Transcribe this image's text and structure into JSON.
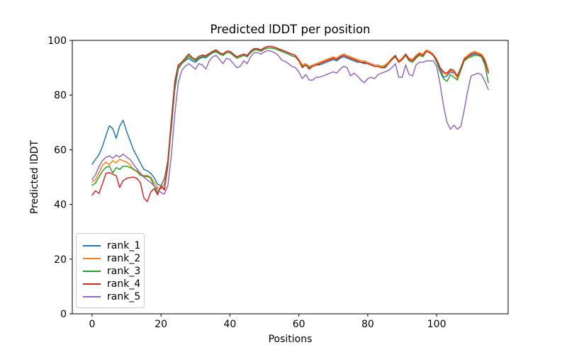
{
  "chart_data": {
    "type": "line",
    "title": "Predicted lDDT per position",
    "xlabel": "Positions",
    "ylabel": "Predicted lDDT",
    "xlim": [
      -5.75,
      120.75
    ],
    "ylim": [
      0,
      100
    ],
    "xticks": [
      0,
      20,
      40,
      60,
      80,
      100
    ],
    "yticks": [
      0,
      20,
      40,
      60,
      80,
      100
    ],
    "grid": false,
    "legend_position": "lower-left",
    "x_start": 0,
    "x_step": 1,
    "series": [
      {
        "name": "rank_1",
        "color": "#1f77b4",
        "values": [
          54.7,
          56.5,
          58.2,
          61.2,
          65.1,
          68.8,
          67.7,
          64.2,
          68.6,
          70.8,
          66.8,
          63.4,
          60,
          57.6,
          55.2,
          52.8,
          52.3,
          51.4,
          49.8,
          47.4,
          46.8,
          49.5,
          56,
          68,
          82,
          89.5,
          91.5,
          92.5,
          93.5,
          92.5,
          92,
          93.2,
          93.8,
          93.6,
          94.6,
          95.5,
          95.8,
          95,
          94.5,
          95.5,
          95.5,
          94.5,
          93.5,
          94,
          94.5,
          94,
          95.5,
          96.5,
          96.5,
          96,
          96.8,
          97.2,
          97.2,
          97,
          96.5,
          96,
          95.5,
          95,
          94.3,
          94,
          92.5,
          90.5,
          91,
          90,
          90.5,
          91,
          91,
          91.5,
          92,
          92.5,
          93,
          92.5,
          93.5,
          94,
          93.5,
          93,
          92.5,
          92,
          92,
          91.5,
          91.5,
          91,
          90.5,
          90.5,
          90,
          90.5,
          91.5,
          93,
          94,
          92,
          93,
          94.5,
          93,
          92.5,
          94,
          95,
          94.5,
          96,
          95.5,
          94.5,
          92.5,
          89.5,
          86.5,
          87,
          88.5,
          88,
          87,
          89.5,
          93,
          94,
          94.5,
          95,
          95,
          94,
          92,
          88.5
        ]
      },
      {
        "name": "rank_2",
        "color": "#ff7f0e",
        "values": [
          48.3,
          49.1,
          51.7,
          54.3,
          55.5,
          54.5,
          56,
          55.2,
          56.5,
          56,
          55.5,
          54.5,
          52.6,
          52.3,
          51,
          50.6,
          50.6,
          50,
          48,
          46.2,
          45.7,
          47.5,
          56,
          70,
          84,
          90.5,
          92,
          93.5,
          95,
          93.8,
          93,
          94.2,
          94.6,
          94.4,
          95.2,
          96,
          96.5,
          95.5,
          95,
          96,
          96,
          95,
          94,
          94.5,
          95,
          94.5,
          96,
          97,
          97,
          96.5,
          97.3,
          97.8,
          97.8,
          97.5,
          97,
          96.5,
          96,
          95.5,
          95,
          94.5,
          93,
          91,
          91.5,
          90.5,
          91,
          91.5,
          92,
          92.5,
          93,
          93.5,
          94,
          93.5,
          94.5,
          95,
          94.5,
          94,
          93.5,
          93,
          92.5,
          92.5,
          92,
          91.5,
          91,
          91,
          90.5,
          91,
          92,
          93.5,
          94.5,
          92.5,
          93.5,
          95,
          93.5,
          93,
          94.5,
          95.5,
          95,
          96.5,
          96,
          95,
          93,
          90,
          88,
          87.5,
          89,
          88.5,
          86,
          90,
          93.5,
          94.5,
          95.5,
          96,
          95.5,
          95,
          93,
          89
        ]
      },
      {
        "name": "rank_3",
        "color": "#2ca02c",
        "values": [
          47,
          47.8,
          50,
          52.2,
          53.5,
          54,
          51.5,
          53.5,
          52.8,
          54,
          54,
          53.5,
          53,
          52,
          50.7,
          50.2,
          50.2,
          49.6,
          46.8,
          44.3,
          46.4,
          45.6,
          54,
          69,
          83,
          90,
          91.5,
          92.8,
          94.3,
          93.2,
          92.5,
          93.6,
          94.2,
          94,
          94.8,
          95.6,
          96,
          95,
          94.5,
          95.5,
          95.5,
          94.5,
          93.5,
          94,
          94.5,
          94,
          95.5,
          96.5,
          96.5,
          96,
          96.8,
          97.2,
          97.2,
          97,
          96.5,
          96,
          95.5,
          95,
          94.3,
          94,
          92.5,
          90.5,
          91,
          90,
          90.5,
          91,
          91.5,
          92,
          92.5,
          93,
          93.5,
          93,
          94,
          94.5,
          94,
          93.5,
          93,
          92.5,
          92,
          92,
          91.5,
          91,
          90.5,
          90.5,
          90,
          90.5,
          91.5,
          93,
          94,
          92,
          93,
          94.5,
          92.5,
          92,
          93.5,
          94.5,
          94,
          96,
          95.5,
          94.5,
          92,
          88.5,
          86,
          85,
          87.5,
          86.5,
          85.5,
          89,
          92.5,
          93.5,
          94,
          94.5,
          94.5,
          94,
          91,
          84.5
        ]
      },
      {
        "name": "rank_4",
        "color": "#d62728",
        "values": [
          43.4,
          45,
          44,
          47.5,
          51.3,
          51.7,
          51,
          50.5,
          46.2,
          48.7,
          49.5,
          49.8,
          50,
          49.5,
          48,
          42.5,
          41,
          44.5,
          45.8,
          43.5,
          46.8,
          45.2,
          56,
          71,
          85,
          91,
          92,
          93.5,
          95,
          93.8,
          93,
          94.2,
          94.6,
          94.4,
          95.2,
          96,
          96.5,
          95.5,
          95,
          96,
          96,
          95,
          94,
          94.5,
          95,
          94.5,
          96,
          97,
          97,
          96.5,
          97.3,
          97.8,
          97.8,
          97.5,
          97,
          96.5,
          96,
          95.5,
          95,
          94.5,
          92.5,
          90,
          91,
          89.5,
          90.5,
          91,
          91.5,
          92,
          92.5,
          93,
          93.5,
          93,
          94,
          94.5,
          94,
          93.5,
          93,
          92.5,
          92,
          92,
          91.5,
          91,
          90.5,
          90.5,
          90,
          90,
          91.5,
          93,
          94.5,
          92,
          93,
          95,
          93,
          92.5,
          94,
          95,
          94.5,
          96,
          95.5,
          94.5,
          93,
          90,
          88.5,
          88,
          89.5,
          89,
          87,
          90,
          93,
          94,
          95,
          95.5,
          95,
          94.5,
          92.5,
          88
        ]
      },
      {
        "name": "rank_5",
        "color": "#9467bd",
        "values": [
          49.1,
          50.9,
          53.9,
          56,
          57.2,
          57.8,
          56.9,
          58,
          57.3,
          58.4,
          57.3,
          56.5,
          54.7,
          53,
          51.5,
          50,
          49,
          48,
          46.7,
          45.5,
          44.3,
          43.8,
          47,
          58,
          73,
          84.5,
          89,
          90.5,
          91.5,
          90.5,
          89.5,
          91.5,
          91,
          89.5,
          92.5,
          94,
          94.5,
          93,
          91.5,
          93.5,
          93,
          91.5,
          90,
          90.5,
          92.5,
          91.5,
          94,
          95.5,
          95.5,
          95,
          95.8,
          96.3,
          96,
          95.5,
          94.5,
          92.8,
          92.3,
          91.5,
          90.5,
          90,
          88.5,
          86,
          87.5,
          85.5,
          85.5,
          86.5,
          86.5,
          87,
          87.5,
          88,
          88.5,
          88,
          89.5,
          90.5,
          90,
          87,
          88,
          87,
          85.5,
          84.5,
          86,
          86.5,
          86,
          87.5,
          88,
          88.5,
          89,
          90,
          91.5,
          86.5,
          86.5,
          91,
          87.5,
          87,
          91,
          92,
          92,
          92.5,
          92.5,
          92.5,
          90.5,
          84,
          76,
          70,
          67.5,
          69,
          67.5,
          68.5,
          74.5,
          81.5,
          87,
          87.5,
          88,
          87.5,
          85,
          82
        ]
      }
    ]
  }
}
